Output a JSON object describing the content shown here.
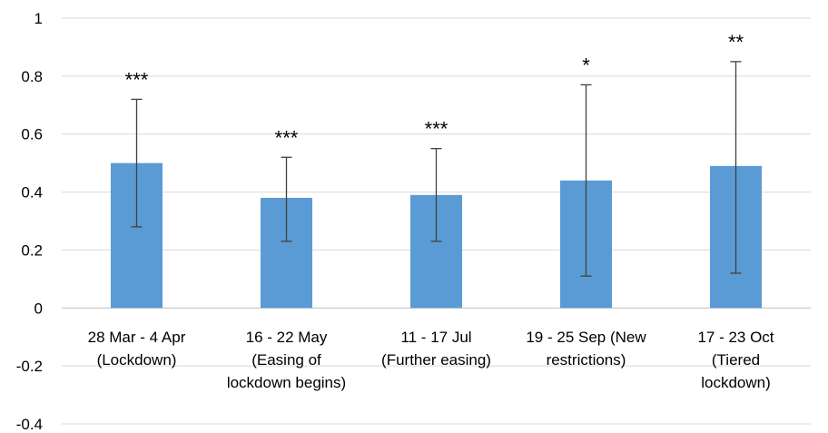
{
  "chart_data": {
    "type": "bar",
    "title": "",
    "xlabel": "",
    "ylabel": "",
    "ylim": [
      -0.4,
      1
    ],
    "yticks": [
      {
        "value": 1,
        "label": "1"
      },
      {
        "value": 0.8,
        "label": "0.8"
      },
      {
        "value": 0.6,
        "label": "0.6"
      },
      {
        "value": 0.4,
        "label": "0.4"
      },
      {
        "value": 0.2,
        "label": "0.2"
      },
      {
        "value": 0,
        "label": "0"
      },
      {
        "value": -0.2,
        "label": "-0.2"
      },
      {
        "value": -0.4,
        "label": "-0.4"
      }
    ],
    "grid": true,
    "bar_color": "#5B9BD5",
    "categories": [
      [
        "28 Mar - 4 Apr",
        "(Lockdown)"
      ],
      [
        "16 - 22 May",
        "(Easing of",
        "lockdown begins)"
      ],
      [
        "11 - 17 Jul",
        "(Further easing)"
      ],
      [
        "19 - 25 Sep (New",
        "restrictions)"
      ],
      [
        "17 - 23 Oct",
        "(Tiered",
        "lockdown)"
      ]
    ],
    "values": [
      0.5,
      0.38,
      0.39,
      0.44,
      0.49
    ],
    "error_low": [
      0.28,
      0.23,
      0.23,
      0.11,
      0.12
    ],
    "error_high": [
      0.72,
      0.52,
      0.55,
      0.77,
      0.85
    ],
    "significance": [
      "***",
      "***",
      "***",
      "*",
      "**"
    ]
  }
}
